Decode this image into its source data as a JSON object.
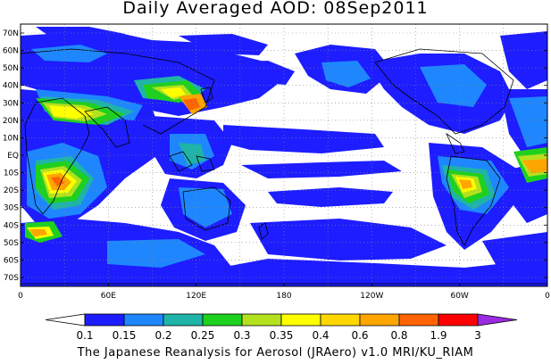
{
  "title": "Daily Averaged AOD: 08Sep2011",
  "footer": "The Japanese Reanalysis for Aerosol (JRAero) v1.0 MRI/KU_RIAM",
  "lat_labels": [
    "70N",
    "60N",
    "50N",
    "40N",
    "30N",
    "20N",
    "10N",
    "EQ",
    "10S",
    "20S",
    "30S",
    "40S",
    "50S",
    "60S",
    "70S"
  ],
  "lon_labels": [
    "0",
    "60E",
    "120E",
    "180",
    "120W",
    "60W",
    "0"
  ],
  "colorbar": {
    "labels": [
      "0.1",
      "0.15",
      "0.2",
      "0.25",
      "0.3",
      "0.35",
      "0.4",
      "0.6",
      "0.8",
      "1.9",
      "3"
    ],
    "colors": [
      "#ffffff",
      "#1d1dff",
      "#1e87ff",
      "#1fb4a7",
      "#1ed11e",
      "#b4e11e",
      "#ffff00",
      "#ffd700",
      "#ffa500",
      "#ff6400",
      "#ff0000",
      "#9a2be0"
    ]
  },
  "palette": {
    "blue": "#1d1dff",
    "lightblue": "#1e87ff",
    "teal": "#1fb4a7",
    "green": "#1ed11e",
    "yellowgreen": "#b4e11e",
    "yellow": "#ffff00",
    "gold": "#ffd700",
    "orange": "#ffa500",
    "darkorange": "#ff6400",
    "red": "#ff0000"
  }
}
